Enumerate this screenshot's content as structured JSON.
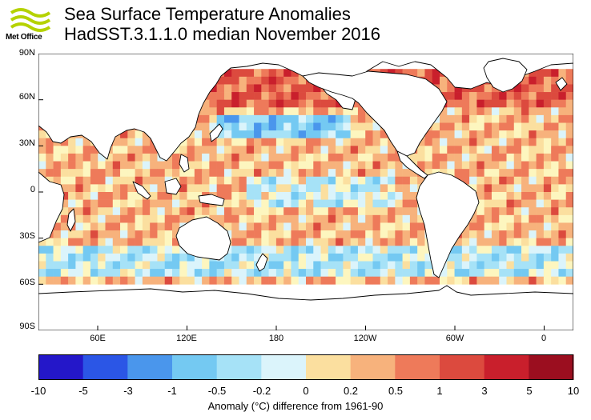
{
  "header": {
    "logo_text": "Met Office",
    "title": "Sea Surface Temperature Anomalies",
    "subtitle": "HadSST.3.1.1.0 median November 2016"
  },
  "map": {
    "lat_ticks": [
      "90N",
      "60N",
      "30N",
      "0",
      "30S",
      "60S",
      "90S"
    ],
    "lon_ticks": [
      "60E",
      "120E",
      "180",
      "120W",
      "60W",
      "0"
    ],
    "projection": "equirectangular, centred on 180",
    "grid_resolution_deg": 5,
    "land_color": "#ffffff",
    "coastline_color": "#000000"
  },
  "colorbar": {
    "labels": [
      "-10",
      "-5",
      "-3",
      "-1",
      "-0.5",
      "-0.2",
      "0",
      "0.2",
      "0.5",
      "1",
      "3",
      "5",
      "10"
    ],
    "colors": [
      "#2417c9",
      "#2b56e6",
      "#4a96ec",
      "#74c9f2",
      "#a6e2f7",
      "#dbf4fb",
      "#fdf6bf",
      "#fbdf9f",
      "#f7b27c",
      "#ee7a5a",
      "#dc4a3e",
      "#c91f2c",
      "#9b0e1f"
    ],
    "caption": "Anomaly (°C) difference from 1961-90"
  }
}
